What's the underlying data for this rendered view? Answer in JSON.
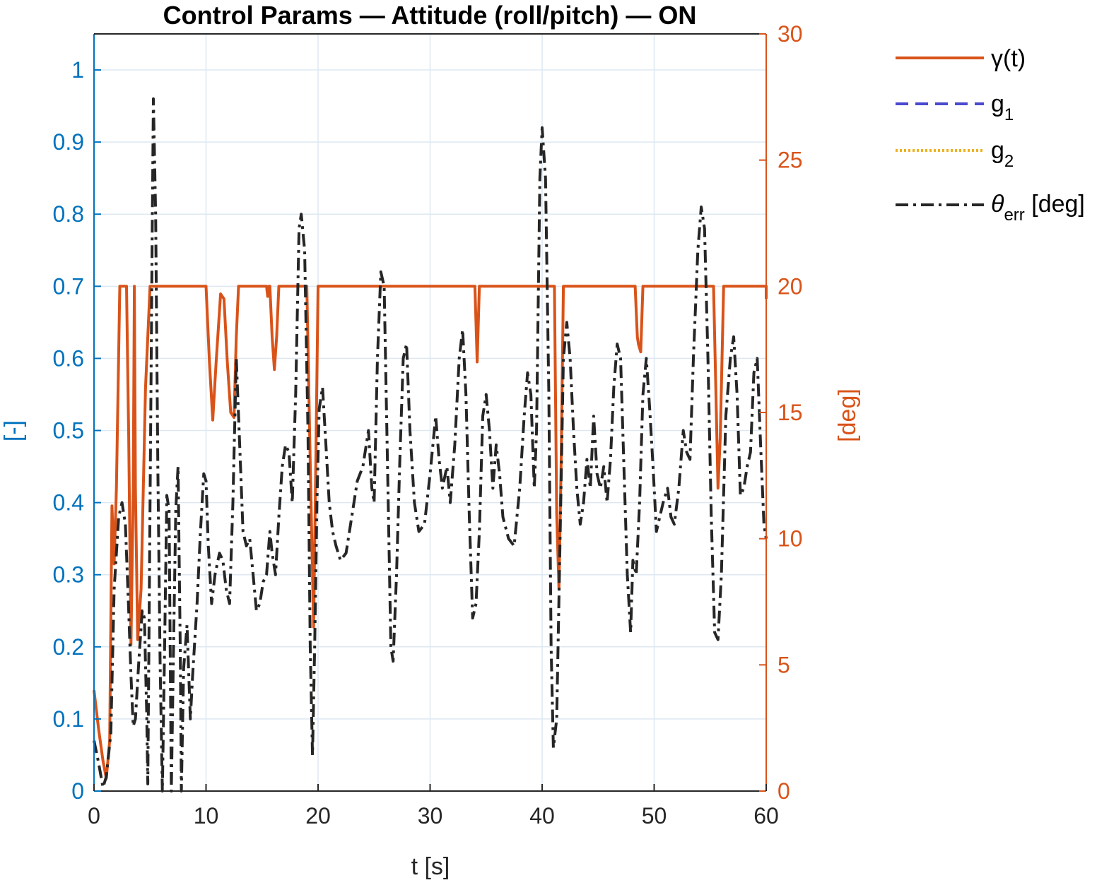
{
  "colors": {
    "left_axis": "#0072BD",
    "right_axis": "#D95319",
    "gamma": "#D95319",
    "g1": "#4A4AD0",
    "g2": "#EDB120",
    "theta": "#262626",
    "grid": "#DDE8F2"
  },
  "chart_data": {
    "type": "line",
    "title": "Control Params — Attitude (roll/pitch) — ON",
    "xlabel": "t [s]",
    "ylabel_left": "[-]",
    "ylabel_right": "[deg]",
    "xlim": [
      0,
      60
    ],
    "ylim_left": [
      0,
      1.05
    ],
    "ylim_right": [
      0,
      30
    ],
    "x_ticks": [
      "0",
      "10",
      "20",
      "30",
      "40",
      "50",
      "60"
    ],
    "y_ticks_left": [
      "0",
      "0.1",
      "0.2",
      "0.3",
      "0.4",
      "0.5",
      "0.6",
      "0.7",
      "0.8",
      "0.9",
      "1"
    ],
    "y_ticks_right": [
      "0",
      "5",
      "10",
      "15",
      "20",
      "25",
      "30"
    ],
    "grid": "y-left",
    "legend": {
      "placement": "outside-right",
      "entries": [
        {
          "id": "gamma",
          "label": "γ(t)",
          "style": "solid"
        },
        {
          "id": "g1",
          "label_main": "g",
          "label_sub": "1",
          "style": "dashed"
        },
        {
          "id": "g2",
          "label_main": "g",
          "label_sub": "2",
          "style": "dotted"
        },
        {
          "id": "theta",
          "label_main": "θ",
          "label_sub": "err",
          "label_tail": " [deg]",
          "style": "dashdot"
        }
      ]
    },
    "series": [
      {
        "id": "gamma",
        "axis": "right",
        "points": [
          [
            0,
            4.0
          ],
          [
            0.4,
            2.5
          ],
          [
            0.8,
            1.2
          ],
          [
            1.1,
            0.5
          ],
          [
            1.4,
            2.0
          ],
          [
            1.6,
            11.3
          ],
          [
            1.8,
            9.0
          ],
          [
            2.0,
            12.0
          ],
          [
            2.3,
            20.0
          ],
          [
            2.6,
            20.0
          ],
          [
            2.9,
            20.0
          ],
          [
            3.1,
            14.0
          ],
          [
            3.3,
            5.8
          ],
          [
            3.5,
            12.0
          ],
          [
            3.6,
            20.0
          ],
          [
            3.7,
            12.0
          ],
          [
            3.9,
            6.0
          ],
          [
            4.2,
            8.0
          ],
          [
            4.6,
            16.0
          ],
          [
            5.0,
            20.0
          ],
          [
            10.0,
            20.0
          ],
          [
            10.3,
            17.0
          ],
          [
            10.6,
            14.7
          ],
          [
            10.9,
            17.0
          ],
          [
            11.3,
            19.7
          ],
          [
            11.6,
            19.5
          ],
          [
            11.9,
            17.0
          ],
          [
            12.2,
            15.0
          ],
          [
            12.5,
            14.8
          ],
          [
            12.7,
            18.0
          ],
          [
            12.9,
            20.0
          ],
          [
            15.4,
            20.0
          ],
          [
            15.5,
            19.6
          ],
          [
            15.6,
            20.0
          ],
          [
            15.7,
            20.0
          ],
          [
            15.9,
            18.0
          ],
          [
            16.1,
            16.7
          ],
          [
            16.3,
            18.0
          ],
          [
            16.5,
            20.0
          ],
          [
            19.0,
            20.0
          ],
          [
            19.3,
            13.0
          ],
          [
            19.6,
            6.5
          ],
          [
            19.8,
            13.0
          ],
          [
            20.0,
            20.0
          ],
          [
            34.0,
            20.0
          ],
          [
            34.2,
            17.0
          ],
          [
            34.4,
            20.0
          ],
          [
            41.1,
            20.0
          ],
          [
            41.3,
            11.0
          ],
          [
            41.5,
            8.0
          ],
          [
            41.7,
            13.0
          ],
          [
            41.9,
            20.0
          ],
          [
            48.3,
            20.0
          ],
          [
            48.5,
            18.0
          ],
          [
            48.6,
            17.7
          ],
          [
            48.8,
            17.4
          ],
          [
            49.0,
            20.0
          ],
          [
            55.3,
            20.0
          ],
          [
            55.5,
            16.0
          ],
          [
            55.7,
            12.0
          ],
          [
            55.9,
            14.0
          ],
          [
            56.2,
            20.0
          ],
          [
            60.0,
            20.0
          ],
          [
            60.0,
            19.5
          ]
        ]
      },
      {
        "id": "theta",
        "axis": "left",
        "points": [
          [
            0.0,
            0.07
          ],
          [
            0.4,
            0.04
          ],
          [
            0.8,
            0.005
          ],
          [
            1.1,
            0.02
          ],
          [
            1.5,
            0.08
          ],
          [
            1.8,
            0.28
          ],
          [
            2.0,
            0.33
          ],
          [
            2.2,
            0.38
          ],
          [
            2.5,
            0.4
          ],
          [
            2.8,
            0.37
          ],
          [
            3.1,
            0.25
          ],
          [
            3.3,
            0.16
          ],
          [
            3.5,
            0.09
          ],
          [
            3.7,
            0.1
          ],
          [
            4.0,
            0.18
          ],
          [
            4.3,
            0.25
          ],
          [
            4.5,
            0.24
          ],
          [
            4.7,
            0.11
          ],
          [
            4.8,
            0.01
          ],
          [
            5.0,
            0.4
          ],
          [
            5.2,
            0.78
          ],
          [
            5.3,
            0.96
          ],
          [
            5.5,
            0.8
          ],
          [
            5.7,
            0.45
          ],
          [
            5.9,
            0.18
          ],
          [
            6.1,
            0.0
          ],
          [
            6.3,
            0.2
          ],
          [
            6.5,
            0.41
          ],
          [
            6.7,
            0.39
          ],
          [
            6.9,
            0.0
          ],
          [
            7.1,
            0.2
          ],
          [
            7.3,
            0.39
          ],
          [
            7.5,
            0.45
          ],
          [
            7.7,
            0.2
          ],
          [
            7.8,
            0.0
          ],
          [
            8.0,
            0.17
          ],
          [
            8.3,
            0.23
          ],
          [
            8.6,
            0.1
          ],
          [
            8.8,
            0.16
          ],
          [
            9.2,
            0.26
          ],
          [
            9.5,
            0.36
          ],
          [
            9.8,
            0.44
          ],
          [
            10.0,
            0.43
          ],
          [
            10.2,
            0.34
          ],
          [
            10.5,
            0.26
          ],
          [
            10.8,
            0.3
          ],
          [
            11.2,
            0.33
          ],
          [
            11.5,
            0.32
          ],
          [
            11.8,
            0.28
          ],
          [
            12.1,
            0.26
          ],
          [
            12.4,
            0.4
          ],
          [
            12.7,
            0.6
          ],
          [
            13.0,
            0.48
          ],
          [
            13.3,
            0.36
          ],
          [
            13.6,
            0.34
          ],
          [
            13.9,
            0.35
          ],
          [
            14.2,
            0.3
          ],
          [
            14.5,
            0.25
          ],
          [
            14.8,
            0.26
          ],
          [
            15.1,
            0.29
          ],
          [
            15.4,
            0.3
          ],
          [
            15.7,
            0.36
          ],
          [
            15.9,
            0.33
          ],
          [
            16.2,
            0.3
          ],
          [
            16.5,
            0.38
          ],
          [
            16.8,
            0.45
          ],
          [
            17.1,
            0.48
          ],
          [
            17.4,
            0.47
          ],
          [
            17.7,
            0.4
          ],
          [
            18.0,
            0.55
          ],
          [
            18.3,
            0.78
          ],
          [
            18.5,
            0.8
          ],
          [
            18.8,
            0.75
          ],
          [
            19.1,
            0.5
          ],
          [
            19.3,
            0.2
          ],
          [
            19.5,
            0.05
          ],
          [
            19.7,
            0.2
          ],
          [
            19.9,
            0.4
          ],
          [
            20.1,
            0.53
          ],
          [
            20.4,
            0.56
          ],
          [
            20.7,
            0.48
          ],
          [
            21.0,
            0.4
          ],
          [
            21.3,
            0.36
          ],
          [
            21.6,
            0.34
          ],
          [
            22.0,
            0.32
          ],
          [
            22.5,
            0.33
          ],
          [
            23.0,
            0.38
          ],
          [
            23.5,
            0.43
          ],
          [
            24.0,
            0.45
          ],
          [
            24.5,
            0.5
          ],
          [
            24.8,
            0.42
          ],
          [
            25.0,
            0.4
          ],
          [
            25.3,
            0.6
          ],
          [
            25.6,
            0.72
          ],
          [
            25.9,
            0.7
          ],
          [
            26.2,
            0.45
          ],
          [
            26.5,
            0.2
          ],
          [
            26.7,
            0.18
          ],
          [
            27.0,
            0.3
          ],
          [
            27.3,
            0.46
          ],
          [
            27.6,
            0.6
          ],
          [
            27.9,
            0.62
          ],
          [
            28.2,
            0.5
          ],
          [
            28.6,
            0.4
          ],
          [
            29.0,
            0.36
          ],
          [
            29.5,
            0.37
          ],
          [
            30.0,
            0.44
          ],
          [
            30.5,
            0.52
          ],
          [
            30.8,
            0.46
          ],
          [
            31.1,
            0.42
          ],
          [
            31.5,
            0.45
          ],
          [
            31.8,
            0.4
          ],
          [
            32.2,
            0.48
          ],
          [
            32.6,
            0.6
          ],
          [
            32.9,
            0.64
          ],
          [
            33.2,
            0.55
          ],
          [
            33.5,
            0.38
          ],
          [
            33.8,
            0.24
          ],
          [
            34.1,
            0.26
          ],
          [
            34.4,
            0.36
          ],
          [
            34.7,
            0.52
          ],
          [
            35.0,
            0.55
          ],
          [
            35.3,
            0.5
          ],
          [
            35.6,
            0.42
          ],
          [
            35.9,
            0.48
          ],
          [
            36.2,
            0.44
          ],
          [
            36.5,
            0.38
          ],
          [
            37.0,
            0.35
          ],
          [
            37.5,
            0.34
          ],
          [
            38.0,
            0.42
          ],
          [
            38.4,
            0.52
          ],
          [
            38.7,
            0.58
          ],
          [
            39.0,
            0.55
          ],
          [
            39.3,
            0.42
          ],
          [
            39.5,
            0.5
          ],
          [
            39.8,
            0.85
          ],
          [
            40.0,
            0.92
          ],
          [
            40.3,
            0.85
          ],
          [
            40.6,
            0.55
          ],
          [
            40.8,
            0.2
          ],
          [
            41.0,
            0.06
          ],
          [
            41.3,
            0.1
          ],
          [
            41.6,
            0.35
          ],
          [
            41.9,
            0.6
          ],
          [
            42.2,
            0.65
          ],
          [
            42.5,
            0.6
          ],
          [
            42.8,
            0.5
          ],
          [
            43.1,
            0.42
          ],
          [
            43.4,
            0.37
          ],
          [
            43.7,
            0.4
          ],
          [
            44.0,
            0.46
          ],
          [
            44.3,
            0.42
          ],
          [
            44.6,
            0.52
          ],
          [
            44.9,
            0.44
          ],
          [
            45.2,
            0.42
          ],
          [
            45.5,
            0.45
          ],
          [
            45.8,
            0.4
          ],
          [
            46.1,
            0.46
          ],
          [
            46.4,
            0.56
          ],
          [
            46.7,
            0.62
          ],
          [
            47.0,
            0.6
          ],
          [
            47.3,
            0.45
          ],
          [
            47.6,
            0.3
          ],
          [
            47.9,
            0.22
          ],
          [
            48.1,
            0.32
          ],
          [
            48.4,
            0.3
          ],
          [
            48.7,
            0.4
          ],
          [
            49.0,
            0.55
          ],
          [
            49.3,
            0.6
          ],
          [
            49.6,
            0.53
          ],
          [
            49.9,
            0.45
          ],
          [
            50.2,
            0.36
          ],
          [
            50.5,
            0.38
          ],
          [
            50.8,
            0.4
          ],
          [
            51.2,
            0.42
          ],
          [
            51.5,
            0.38
          ],
          [
            51.8,
            0.37
          ],
          [
            52.2,
            0.42
          ],
          [
            52.6,
            0.5
          ],
          [
            52.9,
            0.47
          ],
          [
            53.2,
            0.46
          ],
          [
            53.5,
            0.6
          ],
          [
            53.9,
            0.75
          ],
          [
            54.2,
            0.81
          ],
          [
            54.5,
            0.78
          ],
          [
            54.8,
            0.6
          ],
          [
            55.1,
            0.38
          ],
          [
            55.4,
            0.22
          ],
          [
            55.7,
            0.21
          ],
          [
            56.0,
            0.3
          ],
          [
            56.4,
            0.52
          ],
          [
            56.8,
            0.6
          ],
          [
            57.1,
            0.63
          ],
          [
            57.4,
            0.55
          ],
          [
            57.7,
            0.41
          ],
          [
            58.0,
            0.42
          ],
          [
            58.3,
            0.45
          ],
          [
            58.6,
            0.47
          ],
          [
            58.9,
            0.58
          ],
          [
            59.2,
            0.6
          ],
          [
            59.5,
            0.48
          ],
          [
            59.8,
            0.37
          ],
          [
            60.0,
            0.35
          ]
        ]
      }
    ]
  }
}
